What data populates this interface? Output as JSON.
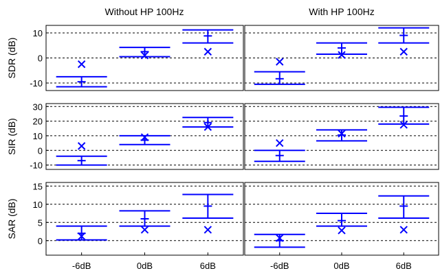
{
  "chart_data": {
    "type": "errorbar-grid",
    "columns": [
      "Without HP 100Hz",
      "With HP 100Hz"
    ],
    "categories": [
      "-6dB",
      "0dB",
      "6dB"
    ],
    "colors": {
      "marks": "#0000ff",
      "axes": "#000000",
      "grid": "#000000"
    },
    "grid": true,
    "rows": [
      {
        "ylabel": "SDR (dB)",
        "ylim": [
          -13,
          13
        ],
        "yticks": [
          -10,
          0,
          10
        ],
        "gridlines": [
          -10,
          0,
          10
        ],
        "panels": [
          {
            "mean": [
              -9.5,
              2.5,
              8.8
            ],
            "lower": [
              -11.5,
              0.5,
              6.0
            ],
            "upper": [
              -7.5,
              4.2,
              11.2
            ],
            "cross": [
              -2.5,
              1.0,
              2.5
            ]
          },
          {
            "mean": [
              -8.3,
              4.0,
              9.0
            ],
            "lower": [
              -10.5,
              1.5,
              6.0
            ],
            "upper": [
              -5.5,
              6.0,
              12.0
            ],
            "cross": [
              -1.5,
              1.2,
              2.5
            ]
          }
        ]
      },
      {
        "ylabel": "SIR (dB)",
        "ylim": [
          -13,
          32
        ],
        "yticks": [
          -10,
          0,
          10,
          20,
          30
        ],
        "gridlines": [
          -10,
          0,
          10,
          20,
          30
        ],
        "panels": [
          {
            "mean": [
              -7.0,
              7.0,
              19.0
            ],
            "lower": [
              -10.0,
              4.0,
              16.0
            ],
            "upper": [
              -4.0,
              10.0,
              22.5
            ],
            "cross": [
              3.0,
              9.0,
              16.0
            ]
          },
          {
            "mean": [
              -3.5,
              10.5,
              23.5
            ],
            "lower": [
              -7.5,
              6.5,
              18.0
            ],
            "upper": [
              0.0,
              14.0,
              29.5
            ],
            "cross": [
              5.0,
              11.5,
              17.5
            ]
          }
        ]
      },
      {
        "ylabel": "SAR (dB)",
        "ylim": [
          -4,
          16
        ],
        "yticks": [
          0,
          5,
          10,
          15
        ],
        "gridlines": [
          0,
          5,
          10,
          15
        ],
        "panels": [
          {
            "mean": [
              2.0,
              6.0,
              9.5
            ],
            "lower": [
              0.2,
              4.0,
              6.2
            ],
            "upper": [
              4.0,
              8.2,
              12.7
            ],
            "cross": [
              1.2,
              3.0,
              3.0
            ]
          },
          {
            "mean": [
              0.0,
              5.5,
              9.5
            ],
            "lower": [
              -1.8,
              4.0,
              6.2
            ],
            "upper": [
              1.7,
              7.5,
              12.3
            ],
            "cross": [
              0.7,
              2.8,
              3.0
            ]
          }
        ]
      }
    ]
  }
}
